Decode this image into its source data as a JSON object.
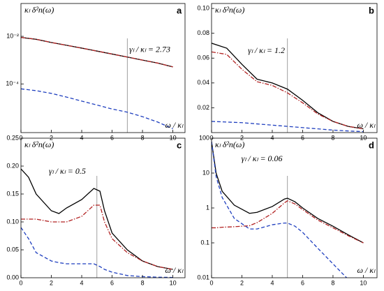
{
  "chart_data": [
    {
      "type": "line",
      "panel": "a",
      "yscale": "log",
      "grid": false,
      "ylabel": "κₗ δ²n(ω)",
      "xlabel": "ω / κₗ",
      "annotation": "γₗ / κₗ = 2.73",
      "vline": 7,
      "xlim": [
        0,
        10.8
      ],
      "xticks": [
        0,
        2,
        4,
        6,
        8,
        10
      ],
      "ylim": [
        9e-07,
        0.24
      ],
      "yticks": [
        {
          "value": 0.01,
          "label": "10⁻²"
        },
        {
          "value": 0.0001,
          "label": "10⁻⁴"
        }
      ],
      "x": [
        0,
        1,
        2,
        3,
        4,
        5,
        6,
        7,
        8,
        9,
        10
      ],
      "series": [
        {
          "color": "#000000",
          "linestyle": "solid",
          "values": [
            0.009,
            0.0075,
            0.0055,
            0.0042,
            0.0032,
            0.0024,
            0.0018,
            0.00135,
            0.001,
            0.00075,
            0.00052
          ]
        },
        {
          "color": "#b22222",
          "linestyle": "dashdot",
          "values": [
            0.009,
            0.0075,
            0.0055,
            0.0042,
            0.0032,
            0.0024,
            0.0018,
            0.00135,
            0.001,
            0.00075,
            0.00052
          ]
        },
        {
          "color": "#1f3fbf",
          "linestyle": "dashed",
          "values": [
            6.2e-05,
            5.2e-05,
            4e-05,
            2.8e-05,
            1.9e-05,
            1.3e-05,
            8.8e-06,
            6.5e-06,
            4.2e-06,
            2.5e-06,
            1.3e-06
          ]
        }
      ]
    },
    {
      "type": "line",
      "panel": "b",
      "yscale": "linear",
      "grid": false,
      "ylabel": "κₗ δ²n(ω)",
      "xlabel": "ω / κₗ",
      "annotation": "γₗ / κₗ = 1.2",
      "vline": 5,
      "xlim": [
        0,
        10.9
      ],
      "xticks": [
        0,
        2,
        4,
        6,
        8,
        10
      ],
      "ylim": [
        0,
        0.104
      ],
      "yticks": [
        0.02,
        0.04,
        0.06,
        {
          "value": 0.08,
          "label": "0.08"
        },
        {
          "value": 0.1,
          "label": "0.10"
        }
      ],
      "x": [
        0,
        1,
        2,
        3,
        4,
        5,
        6,
        7,
        8,
        9,
        10
      ],
      "series": [
        {
          "color": "#000000",
          "linestyle": "solid",
          "values": [
            0.072,
            0.068,
            0.055,
            0.043,
            0.04,
            0.035,
            0.026,
            0.016,
            0.009,
            0.005,
            0.003
          ]
        },
        {
          "color": "#b22222",
          "linestyle": "dashdot",
          "values": [
            0.065,
            0.063,
            0.051,
            0.041,
            0.038,
            0.032,
            0.024,
            0.015,
            0.009,
            0.005,
            0.003
          ]
        },
        {
          "color": "#1f3fbf",
          "linestyle": "dashed",
          "values": [
            0.009,
            0.0085,
            0.008,
            0.007,
            0.006,
            0.005,
            0.004,
            0.003,
            0.002,
            0.0013,
            0.0008
          ]
        }
      ]
    },
    {
      "type": "line",
      "panel": "c",
      "yscale": "linear",
      "grid": false,
      "ylabel": "κₗ δ²n(ω)",
      "xlabel": "ω / κₗ",
      "annotation": "γₗ / κₗ = 0.5",
      "vline": 5,
      "xlim": [
        0,
        10.8
      ],
      "xticks": [
        0,
        2,
        4,
        6,
        8,
        10
      ],
      "ylim": [
        0,
        0.25
      ],
      "yticks": [
        {
          "value": 0,
          "label": "0.00"
        },
        0.05,
        {
          "value": 0.1,
          "label": "0.10"
        },
        0.15,
        {
          "value": 0.2,
          "label": "0.20"
        },
        0.25
      ],
      "x": [
        0,
        0.5,
        1,
        2,
        2.5,
        3,
        4,
        4.8,
        5.2,
        5.5,
        6,
        7,
        8,
        9,
        10
      ],
      "series": [
        {
          "color": "#000000",
          "linestyle": "solid",
          "values": [
            0.195,
            0.18,
            0.15,
            0.12,
            0.115,
            0.125,
            0.14,
            0.16,
            0.155,
            0.12,
            0.08,
            0.05,
            0.03,
            0.02,
            0.015
          ]
        },
        {
          "color": "#b22222",
          "linestyle": "dashdot",
          "values": [
            0.105,
            0.105,
            0.105,
            0.1,
            0.1,
            0.1,
            0.11,
            0.13,
            0.13,
            0.1,
            0.07,
            0.045,
            0.03,
            0.02,
            0.015
          ]
        },
        {
          "color": "#1f3fbf",
          "linestyle": "dashed",
          "values": [
            0.09,
            0.07,
            0.045,
            0.03,
            0.027,
            0.025,
            0.025,
            0.025,
            0.02,
            0.015,
            0.01,
            0.004,
            0.002,
            0.001,
            0.0005
          ]
        }
      ]
    },
    {
      "type": "line",
      "panel": "d",
      "yscale": "log",
      "grid": false,
      "ylabel": "κₗ δ²n(ω)",
      "xlabel": "ω / κₗ",
      "annotation": "γₗ / κₗ = 0.06",
      "vline": 5,
      "xlim": [
        0,
        10.9
      ],
      "xticks": [
        0,
        2,
        4,
        6,
        8,
        10
      ],
      "ylim": [
        0.01,
        100
      ],
      "yticks": [
        0.01,
        0.1,
        1,
        10,
        100
      ],
      "x": [
        0,
        0.3,
        0.7,
        1.5,
        2.5,
        3,
        4,
        4.8,
        5,
        5.5,
        6,
        7,
        8,
        9,
        10
      ],
      "series": [
        {
          "color": "#000000",
          "linestyle": "solid",
          "values": [
            80,
            10,
            3,
            1.2,
            0.7,
            0.75,
            1.1,
            1.8,
            1.9,
            1.5,
            1,
            0.5,
            0.3,
            0.17,
            0.1
          ]
        },
        {
          "color": "#b22222",
          "linestyle": "dashdot",
          "values": [
            0.27,
            0.27,
            0.28,
            0.29,
            0.31,
            0.38,
            0.7,
            1.4,
            1.6,
            1.3,
            0.9,
            0.45,
            0.27,
            0.16,
            0.1
          ]
        },
        {
          "color": "#1f3fbf",
          "linestyle": "dashed",
          "values": [
            80,
            8,
            2,
            0.5,
            0.25,
            0.25,
            0.33,
            0.37,
            0.37,
            0.3,
            0.2,
            0.07,
            0.025,
            0.009,
            0.004
          ]
        }
      ]
    }
  ]
}
